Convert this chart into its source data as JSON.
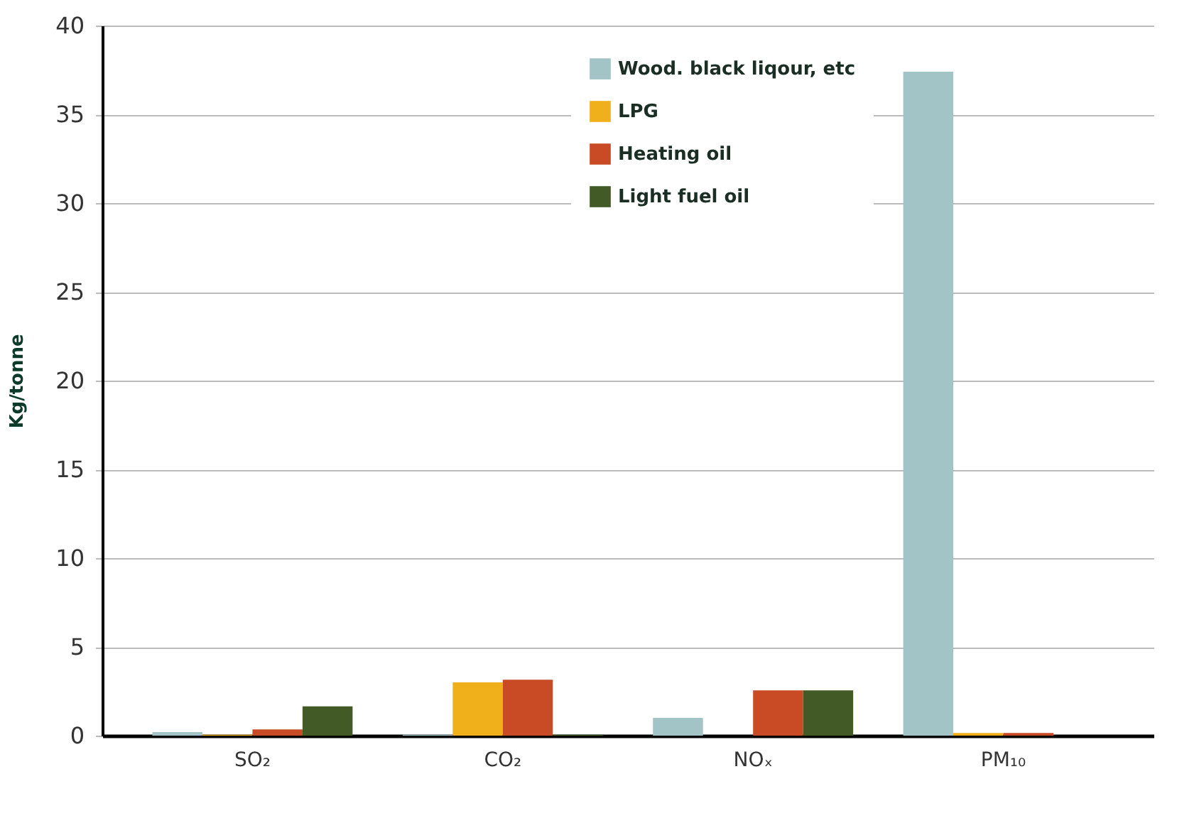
{
  "chart_data": {
    "type": "bar",
    "ylabel": "Kg/tonne",
    "categories": [
      "SO₂",
      "CO₂",
      "NOₓ",
      "PM₁₀"
    ],
    "series": [
      {
        "name": "Wood. black liqour, etc",
        "color": "#a3c4c6",
        "values": [
          0.2,
          0.05,
          1.0,
          37.4
        ]
      },
      {
        "name": "LPG",
        "color": "#f0b01c",
        "values": [
          0.05,
          3.0,
          0,
          0.15
        ]
      },
      {
        "name": "Heating oil",
        "color": "#c84b26",
        "values": [
          0.35,
          3.15,
          2.55,
          0.15
        ]
      },
      {
        "name": "Light fuel oil",
        "color": "#425a26",
        "values": [
          1.65,
          0.05,
          2.55,
          0
        ]
      }
    ],
    "ylim": [
      0,
      40
    ],
    "yticks": [
      0,
      5,
      10,
      15,
      20,
      25,
      30,
      35,
      40
    ],
    "grid": "y",
    "legend": "top"
  }
}
